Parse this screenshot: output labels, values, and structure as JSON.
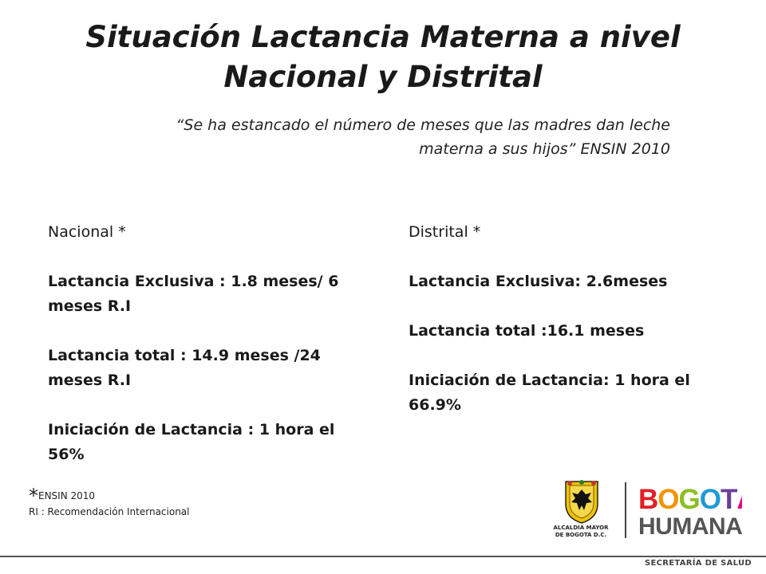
{
  "title": {
    "line1": "Situación Lactancia Materna a nivel",
    "line2": "Nacional  y Distrital"
  },
  "quote": {
    "line1": "“Se ha estancado el número de meses que las madres dan leche",
    "line2": "materna a sus hijos” ENSIN 2010"
  },
  "nacional": {
    "heading": "Nacional *",
    "items": [
      "Lactancia Exclusiva : 1.8 meses/ 6 meses R.I",
      "Lactancia total : 14.9 meses /24 meses R.I",
      "Iniciación de Lactancia : 1 hora el 56%"
    ]
  },
  "distrital": {
    "heading": "Distrital  *",
    "items": [
      "Lactancia Exclusiva: 2.6meses",
      "Lactancia total :16.1 meses",
      "Iniciación de Lactancia: 1 hora el 66.9%"
    ]
  },
  "footnote": {
    "star": "*",
    "source": "ENSIN 2010",
    "ri": "RI : Recomendación Internacional"
  },
  "logos": {
    "alcaldia_line1": "ALCALDÍA MAYOR",
    "alcaldia_line2": "DE BOGOTÁ D.C.",
    "bogota": "BOGOTÁ",
    "humana": "HUMANA",
    "secretaria": "SECRETARÍA DE SALUD"
  }
}
